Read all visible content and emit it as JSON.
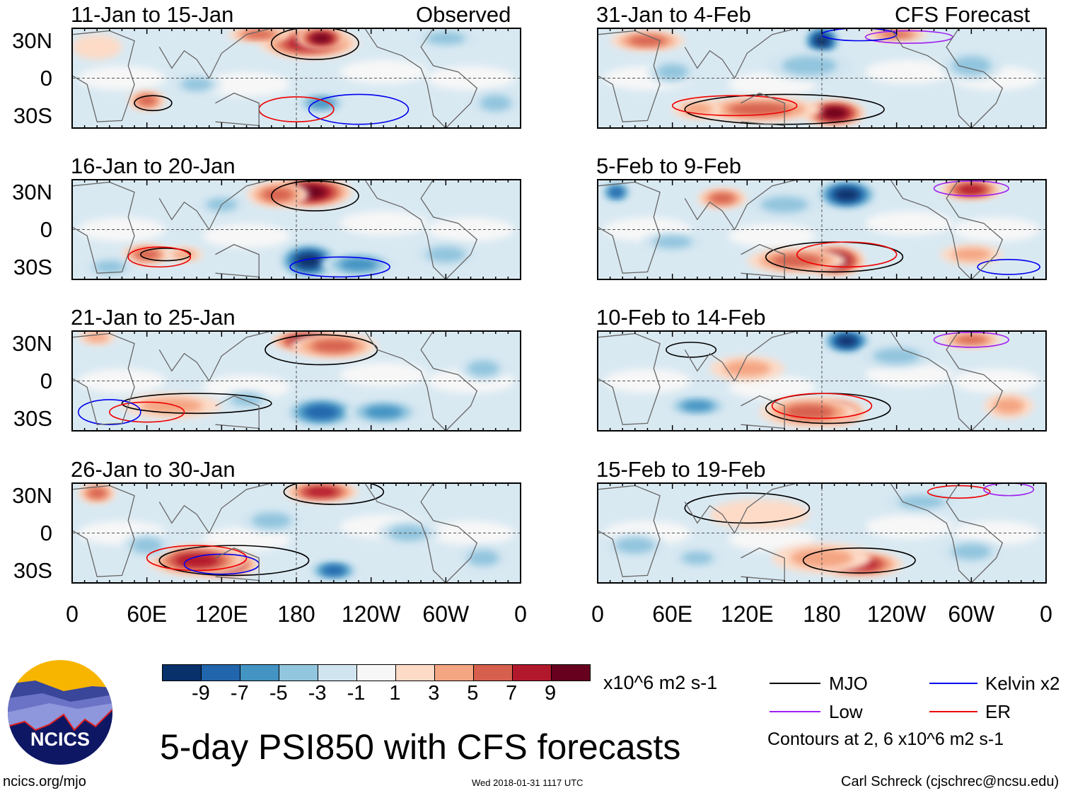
{
  "colorbar": {
    "colors": [
      "#08306b",
      "#2166ac",
      "#4393c3",
      "#92c5de",
      "#d1e5f0",
      "#f7f7f7",
      "#fddbc7",
      "#f4a582",
      "#d6604d",
      "#b2182b",
      "#67001f"
    ],
    "ticks": [
      "-9",
      "-7",
      "-5",
      "-3",
      "-1",
      "1",
      "3",
      "5",
      "7",
      "9"
    ],
    "units": "x10^6 m2 s-1"
  },
  "column_labels": {
    "observed": "Observed",
    "forecast": "CFS Forecast"
  },
  "lat_labels": [
    "30N",
    "0",
    "30S"
  ],
  "lon_labels": [
    "0",
    "60E",
    "120E",
    "180",
    "120W",
    "60W",
    "0"
  ],
  "legend": {
    "items": [
      {
        "label": "MJO",
        "color": "#000000"
      },
      {
        "label": "Kelvin x2",
        "color": "#0000ee"
      },
      {
        "label": "Low",
        "color": "#a020f0"
      },
      {
        "label": "ER",
        "color": "#ee0000"
      }
    ],
    "note": "Contours at 2, 6 x10^6 m2 s-1"
  },
  "title": "5-day PSI850 with CFS forecasts",
  "logo": {
    "text": "NCICS"
  },
  "footer": {
    "url": "ncics.org/mjo",
    "timestamp": "Wed 2018-01-31 1117 UTC",
    "author": "Carl Schreck (cjschrec@ncsu.edu)"
  },
  "panels": [
    {
      "title": "11-Jan to 15-Jan",
      "col": 0,
      "row": 0,
      "anoms": [
        [
          190,
          28,
          7,
          40,
          12
        ],
        [
          200,
          32,
          9,
          20,
          8
        ],
        [
          150,
          35,
          5,
          25,
          6
        ],
        [
          60,
          -18,
          5,
          15,
          8
        ],
        [
          200,
          -20,
          -5,
          20,
          8
        ],
        [
          100,
          -5,
          -3,
          20,
          8
        ],
        [
          300,
          32,
          -3,
          25,
          8
        ],
        [
          340,
          -20,
          -3,
          20,
          10
        ],
        [
          20,
          25,
          2,
          20,
          10
        ]
      ],
      "contours": [
        [
          "#000",
          195,
          28,
          35,
          13
        ],
        [
          "#000",
          65,
          -20,
          15,
          6
        ],
        [
          "#0000ee",
          230,
          -25,
          40,
          12
        ],
        [
          "#ee0000",
          180,
          -25,
          30,
          10
        ]
      ]
    },
    {
      "title": "16-Jan to 20-Jan",
      "col": 0,
      "row": 1,
      "anoms": [
        [
          190,
          30,
          9,
          35,
          12
        ],
        [
          165,
          28,
          6,
          25,
          10
        ],
        [
          190,
          -25,
          -9,
          25,
          14
        ],
        [
          230,
          -28,
          -5,
          30,
          10
        ],
        [
          60,
          -20,
          5,
          20,
          8
        ],
        [
          90,
          -20,
          4,
          15,
          6
        ],
        [
          120,
          20,
          -3,
          20,
          8
        ],
        [
          300,
          -20,
          -3,
          25,
          10
        ],
        [
          30,
          -30,
          -3,
          20,
          8
        ]
      ],
      "contours": [
        [
          "#000",
          195,
          27,
          35,
          12
        ],
        [
          "#000",
          75,
          -20,
          20,
          5
        ],
        [
          "#ee0000",
          70,
          -22,
          25,
          8
        ],
        [
          "#0000ee",
          215,
          -30,
          40,
          8
        ]
      ]
    },
    {
      "title": "21-Jan to 25-Jan",
      "col": 0,
      "row": 2,
      "anoms": [
        [
          190,
          32,
          9,
          30,
          8
        ],
        [
          210,
          28,
          6,
          35,
          10
        ],
        [
          200,
          -25,
          -8,
          30,
          12
        ],
        [
          250,
          -25,
          -6,
          30,
          10
        ],
        [
          80,
          -20,
          4,
          40,
          10
        ],
        [
          140,
          -15,
          -3,
          20,
          8
        ],
        [
          330,
          10,
          -3,
          20,
          10
        ],
        [
          20,
          35,
          4,
          15,
          6
        ]
      ],
      "contours": [
        [
          "#000",
          200,
          25,
          45,
          12
        ],
        [
          "#000",
          100,
          -18,
          60,
          8
        ],
        [
          "#ee0000",
          60,
          -25,
          30,
          8
        ],
        [
          "#0000ee",
          30,
          -25,
          25,
          10
        ]
      ]
    },
    {
      "title": "26-Jan to 30-Jan",
      "col": 0,
      "row": 3,
      "anoms": [
        [
          120,
          -25,
          9,
          30,
          10
        ],
        [
          100,
          -22,
          7,
          40,
          12
        ],
        [
          200,
          33,
          7,
          30,
          8
        ],
        [
          210,
          -30,
          -8,
          20,
          8
        ],
        [
          20,
          32,
          6,
          15,
          8
        ],
        [
          60,
          -10,
          -3,
          20,
          10
        ],
        [
          160,
          10,
          -3,
          25,
          10
        ],
        [
          270,
          0,
          -3,
          25,
          10
        ],
        [
          330,
          -20,
          -3,
          20,
          10
        ]
      ],
      "contours": [
        [
          "#000",
          130,
          -22,
          60,
          12
        ],
        [
          "#000",
          210,
          33,
          40,
          10
        ],
        [
          "#ee0000",
          100,
          -20,
          40,
          10
        ],
        [
          "#0000ee",
          120,
          -25,
          30,
          8
        ]
      ]
    },
    {
      "title": "31-Jan to 4-Feb",
      "col": 1,
      "row": 0,
      "anoms": [
        [
          180,
          30,
          -9,
          15,
          12
        ],
        [
          170,
          10,
          -4,
          35,
          12
        ],
        [
          190,
          -28,
          9,
          25,
          10
        ],
        [
          130,
          -25,
          5,
          50,
          10
        ],
        [
          80,
          -25,
          4,
          20,
          8
        ],
        [
          40,
          30,
          5,
          30,
          8
        ],
        [
          240,
          35,
          6,
          25,
          5
        ],
        [
          300,
          10,
          -4,
          25,
          12
        ],
        [
          60,
          5,
          -3,
          20,
          10
        ]
      ],
      "contours": [
        [
          "#000",
          150,
          -25,
          80,
          12
        ],
        [
          "#ee0000",
          110,
          -22,
          50,
          8
        ],
        [
          "#a020f0",
          250,
          33,
          35,
          5
        ],
        [
          "#0000ee",
          210,
          35,
          30,
          5
        ]
      ]
    },
    {
      "title": "5-Feb to 9-Feb",
      "col": 1,
      "row": 1,
      "anoms": [
        [
          200,
          28,
          -9,
          25,
          12
        ],
        [
          150,
          20,
          -4,
          30,
          10
        ],
        [
          190,
          -25,
          9,
          25,
          12
        ],
        [
          160,
          -25,
          5,
          40,
          10
        ],
        [
          100,
          25,
          5,
          20,
          8
        ],
        [
          300,
          32,
          7,
          25,
          8
        ],
        [
          15,
          30,
          -7,
          12,
          8
        ],
        [
          300,
          -20,
          3,
          25,
          8
        ],
        [
          60,
          -10,
          -3,
          25,
          8
        ]
      ],
      "contours": [
        [
          "#000",
          190,
          -22,
          55,
          12
        ],
        [
          "#ee0000",
          200,
          -20,
          40,
          10
        ],
        [
          "#a020f0",
          300,
          33,
          30,
          6
        ],
        [
          "#0000ee",
          330,
          -30,
          25,
          6
        ]
      ]
    },
    {
      "title": "10-Feb to 14-Feb",
      "col": 1,
      "row": 2,
      "anoms": [
        [
          200,
          32,
          -9,
          20,
          10
        ],
        [
          190,
          -25,
          9,
          25,
          10
        ],
        [
          170,
          -25,
          5,
          40,
          12
        ],
        [
          80,
          -20,
          -5,
          25,
          8
        ],
        [
          300,
          33,
          5,
          25,
          6
        ],
        [
          120,
          10,
          3,
          30,
          10
        ],
        [
          240,
          20,
          -3,
          30,
          10
        ],
        [
          330,
          -20,
          3,
          20,
          10
        ]
      ],
      "contours": [
        [
          "#000",
          185,
          -22,
          50,
          12
        ],
        [
          "#ee0000",
          180,
          -20,
          40,
          10
        ],
        [
          "#a020f0",
          300,
          33,
          30,
          6
        ],
        [
          "#000",
          75,
          25,
          20,
          6
        ]
      ]
    },
    {
      "title": "15-Feb to 19-Feb",
      "col": 1,
      "row": 3,
      "anoms": [
        [
          210,
          -25,
          7,
          35,
          10
        ],
        [
          180,
          -20,
          4,
          40,
          12
        ],
        [
          80,
          -20,
          -4,
          20,
          8
        ],
        [
          130,
          15,
          2,
          40,
          12
        ],
        [
          260,
          25,
          -3,
          30,
          8
        ],
        [
          300,
          -15,
          -3,
          25,
          10
        ],
        [
          30,
          -10,
          -3,
          25,
          10
        ]
      ],
      "contours": [
        [
          "#000",
          120,
          20,
          50,
          12
        ],
        [
          "#000",
          210,
          -22,
          45,
          10
        ],
        [
          "#ee0000",
          290,
          33,
          25,
          5
        ],
        [
          "#a020f0",
          330,
          35,
          20,
          5
        ]
      ]
    }
  ]
}
